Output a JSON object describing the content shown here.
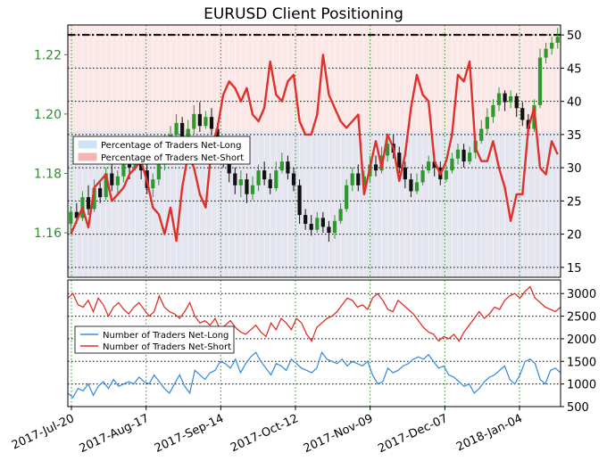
{
  "chart_data": {
    "title": "EURUSD Client Positioning",
    "type": "line",
    "x_tick_labels": [
      "2017-Jul-20",
      "2017-Aug-17",
      "2017-Sep-14",
      "2017-Oct-12",
      "2017-Nov-09",
      "2017-Dec-07",
      "2018-Jan-04"
    ],
    "top_panel": {
      "price_axis": {
        "ticks": [
          "1.16",
          "1.18",
          "1.20",
          "1.22"
        ],
        "ylim": [
          1.145,
          1.23
        ],
        "color": "#2e8b2e"
      },
      "percent_axis": {
        "ticks": [
          "15",
          "20",
          "25",
          "30",
          "35",
          "40",
          "45",
          "50"
        ],
        "ylim": [
          13.5,
          51.5
        ]
      },
      "reference_line_value": 50,
      "legend": {
        "position": "top-left",
        "entries": [
          {
            "label": "Percentage of Traders Net-Long",
            "color": "#cfe3f5"
          },
          {
            "label": "Percentage of Traders Net-Short",
            "color": "#f7b4b4"
          }
        ]
      },
      "net_short_pct": [
        20,
        22,
        24,
        21,
        27,
        28,
        29,
        25,
        26,
        27,
        29,
        30,
        31,
        28,
        24,
        23,
        20,
        24,
        19,
        27,
        32,
        30,
        26,
        24,
        33,
        36,
        41,
        43,
        42,
        40,
        42,
        38,
        37,
        39,
        46,
        41,
        40,
        43,
        44,
        37,
        35,
        35,
        38,
        47,
        41,
        39,
        37,
        36,
        37,
        38,
        26,
        30,
        34,
        30,
        35,
        33,
        28,
        32,
        39,
        44,
        41,
        40,
        31,
        29,
        31,
        35,
        44,
        43,
        46,
        33,
        31,
        31,
        34,
        30,
        27,
        22,
        26,
        26,
        36,
        39,
        30,
        29,
        34,
        32
      ],
      "price_candles": [
        [
          1.163,
          1.167,
          1.16,
          1.169
        ],
        [
          1.167,
          1.165,
          1.163,
          1.17
        ],
        [
          1.165,
          1.172,
          1.164,
          1.174
        ],
        [
          1.172,
          1.168,
          1.166,
          1.176
        ],
        [
          1.168,
          1.175,
          1.167,
          1.178
        ],
        [
          1.175,
          1.172,
          1.17,
          1.177
        ],
        [
          1.172,
          1.18,
          1.171,
          1.182
        ],
        [
          1.18,
          1.176,
          1.174,
          1.183
        ],
        [
          1.176,
          1.179,
          1.173,
          1.181
        ],
        [
          1.179,
          1.183,
          1.177,
          1.186
        ],
        [
          1.183,
          1.182,
          1.178,
          1.187
        ],
        [
          1.182,
          1.186,
          1.181,
          1.19
        ],
        [
          1.186,
          1.181,
          1.178,
          1.188
        ],
        [
          1.181,
          1.175,
          1.173,
          1.183
        ],
        [
          1.175,
          1.178,
          1.172,
          1.18
        ],
        [
          1.178,
          1.183,
          1.176,
          1.185
        ],
        [
          1.183,
          1.19,
          1.181,
          1.193
        ],
        [
          1.19,
          1.193,
          1.188,
          1.196
        ],
        [
          1.193,
          1.197,
          1.191,
          1.2
        ],
        [
          1.197,
          1.192,
          1.19,
          1.199
        ],
        [
          1.192,
          1.195,
          1.189,
          1.198
        ],
        [
          1.195,
          1.2,
          1.193,
          1.203
        ],
        [
          1.2,
          1.196,
          1.194,
          1.204
        ],
        [
          1.196,
          1.199,
          1.195,
          1.201
        ],
        [
          1.199,
          1.195,
          1.193,
          1.202
        ],
        [
          1.195,
          1.188,
          1.186,
          1.197
        ],
        [
          1.188,
          1.185,
          1.182,
          1.19
        ],
        [
          1.185,
          1.18,
          1.177,
          1.187
        ],
        [
          1.18,
          1.176,
          1.173,
          1.182
        ],
        [
          1.176,
          1.178,
          1.172,
          1.181
        ],
        [
          1.178,
          1.173,
          1.17,
          1.18
        ],
        [
          1.173,
          1.176,
          1.171,
          1.179
        ],
        [
          1.176,
          1.181,
          1.174,
          1.183
        ],
        [
          1.181,
          1.178,
          1.176,
          1.184
        ],
        [
          1.178,
          1.175,
          1.173,
          1.18
        ],
        [
          1.175,
          1.181,
          1.174,
          1.184
        ],
        [
          1.181,
          1.184,
          1.18,
          1.187
        ],
        [
          1.184,
          1.18,
          1.178,
          1.186
        ],
        [
          1.18,
          1.176,
          1.174,
          1.182
        ],
        [
          1.176,
          1.166,
          1.163,
          1.178
        ],
        [
          1.166,
          1.163,
          1.161,
          1.168
        ],
        [
          1.163,
          1.161,
          1.159,
          1.166
        ],
        [
          1.161,
          1.165,
          1.16,
          1.167
        ],
        [
          1.165,
          1.162,
          1.16,
          1.167
        ],
        [
          1.162,
          1.16,
          1.157,
          1.164
        ],
        [
          1.16,
          1.164,
          1.158,
          1.166
        ],
        [
          1.164,
          1.168,
          1.163,
          1.17
        ],
        [
          1.168,
          1.176,
          1.167,
          1.178
        ],
        [
          1.176,
          1.18,
          1.174,
          1.182
        ],
        [
          1.18,
          1.176,
          1.174,
          1.183
        ],
        [
          1.176,
          1.179,
          1.175,
          1.181
        ],
        [
          1.179,
          1.183,
          1.177,
          1.186
        ],
        [
          1.183,
          1.181,
          1.179,
          1.186
        ],
        [
          1.181,
          1.186,
          1.18,
          1.189
        ],
        [
          1.186,
          1.19,
          1.184,
          1.192
        ],
        [
          1.19,
          1.187,
          1.185,
          1.193
        ],
        [
          1.187,
          1.182,
          1.18,
          1.189
        ],
        [
          1.182,
          1.178,
          1.175,
          1.184
        ],
        [
          1.178,
          1.174,
          1.172,
          1.18
        ],
        [
          1.174,
          1.177,
          1.173,
          1.18
        ],
        [
          1.177,
          1.181,
          1.176,
          1.183
        ],
        [
          1.181,
          1.184,
          1.18,
          1.186
        ],
        [
          1.184,
          1.182,
          1.179,
          1.186
        ],
        [
          1.182,
          1.178,
          1.176,
          1.184
        ],
        [
          1.178,
          1.181,
          1.177,
          1.183
        ],
        [
          1.181,
          1.185,
          1.18,
          1.187
        ],
        [
          1.185,
          1.188,
          1.183,
          1.19
        ],
        [
          1.188,
          1.184,
          1.182,
          1.19
        ],
        [
          1.184,
          1.187,
          1.183,
          1.189
        ],
        [
          1.187,
          1.191,
          1.185,
          1.193
        ],
        [
          1.191,
          1.195,
          1.19,
          1.198
        ],
        [
          1.195,
          1.199,
          1.193,
          1.202
        ],
        [
          1.199,
          1.203,
          1.197,
          1.205
        ],
        [
          1.203,
          1.207,
          1.201,
          1.209
        ],
        [
          1.207,
          1.204,
          1.201,
          1.208
        ],
        [
          1.204,
          1.206,
          1.202,
          1.208
        ],
        [
          1.206,
          1.202,
          1.199,
          1.207
        ],
        [
          1.202,
          1.198,
          1.196,
          1.204
        ],
        [
          1.198,
          1.195,
          1.193,
          1.2
        ],
        [
          1.195,
          1.203,
          1.194,
          1.205
        ],
        [
          1.203,
          1.219,
          1.202,
          1.222
        ],
        [
          1.219,
          1.222,
          1.217,
          1.224
        ],
        [
          1.222,
          1.224,
          1.22,
          1.226
        ],
        [
          1.224,
          1.226,
          1.222,
          1.229
        ]
      ]
    },
    "bottom_panel": {
      "y_ticks": [
        "500",
        "1000",
        "1500",
        "2000",
        "2500",
        "3000"
      ],
      "ylim": [
        500,
        3300
      ],
      "legend": {
        "position": "top-left",
        "entries": [
          {
            "label": "Number of Traders Net-Long",
            "color": "#3d8fe0"
          },
          {
            "label": "Number of Traders Net-Short",
            "color": "#e0302a"
          }
        ]
      },
      "net_long": [
        800,
        700,
        900,
        850,
        1000,
        750,
        950,
        1050,
        900,
        1100,
        950,
        1000,
        1050,
        1000,
        1150,
        1050,
        1000,
        1200,
        1050,
        900,
        800,
        1000,
        1200,
        950,
        800,
        1300,
        1200,
        1100,
        1250,
        1300,
        1500,
        1450,
        1350,
        1550,
        1250,
        1450,
        1600,
        1700,
        1500,
        1350,
        1200,
        1450,
        1400,
        1300,
        1550,
        1450,
        1350,
        1300,
        1250,
        1350,
        1700,
        1550,
        1500,
        1450,
        1550,
        1400,
        1500,
        1450,
        1400,
        1500,
        1200,
        1000,
        1050,
        1350,
        1250,
        1300,
        1400,
        1450,
        1550,
        1600,
        1550,
        1650,
        1500,
        1350,
        1400,
        1200,
        1150,
        1050,
        950,
        1000,
        800,
        900,
        1050,
        1150,
        1200,
        1300,
        1400,
        1100,
        1000,
        1200,
        1500,
        1550,
        1450,
        1100,
        1000,
        1300,
        1350,
        1250
      ],
      "net_short": [
        2900,
        3000,
        2750,
        2700,
        2850,
        2600,
        2900,
        2750,
        2500,
        2700,
        2800,
        2650,
        2550,
        2700,
        2800,
        2650,
        2500,
        2600,
        2950,
        2700,
        2600,
        2550,
        2450,
        2600,
        2800,
        2500,
        2350,
        2400,
        2300,
        2450,
        2200,
        2300,
        2400,
        2250,
        2150,
        2100,
        2200,
        2300,
        2150,
        2050,
        2350,
        2200,
        2450,
        2350,
        2200,
        2450,
        2350,
        2100,
        1950,
        2250,
        2350,
        2450,
        2500,
        2600,
        2750,
        2900,
        2850,
        2700,
        2750,
        2650,
        2900,
        3000,
        2850,
        2650,
        2600,
        2850,
        2750,
        2650,
        2550,
        2400,
        2250,
        2150,
        2100,
        1950,
        2050,
        2000,
        2100,
        1950,
        2150,
        2300,
        2450,
        2600,
        2450,
        2550,
        2700,
        2650,
        2850,
        2950,
        3000,
        2900,
        3050,
        3150,
        2900,
        2800,
        2700,
        2650,
        2600,
        2700
      ]
    }
  }
}
